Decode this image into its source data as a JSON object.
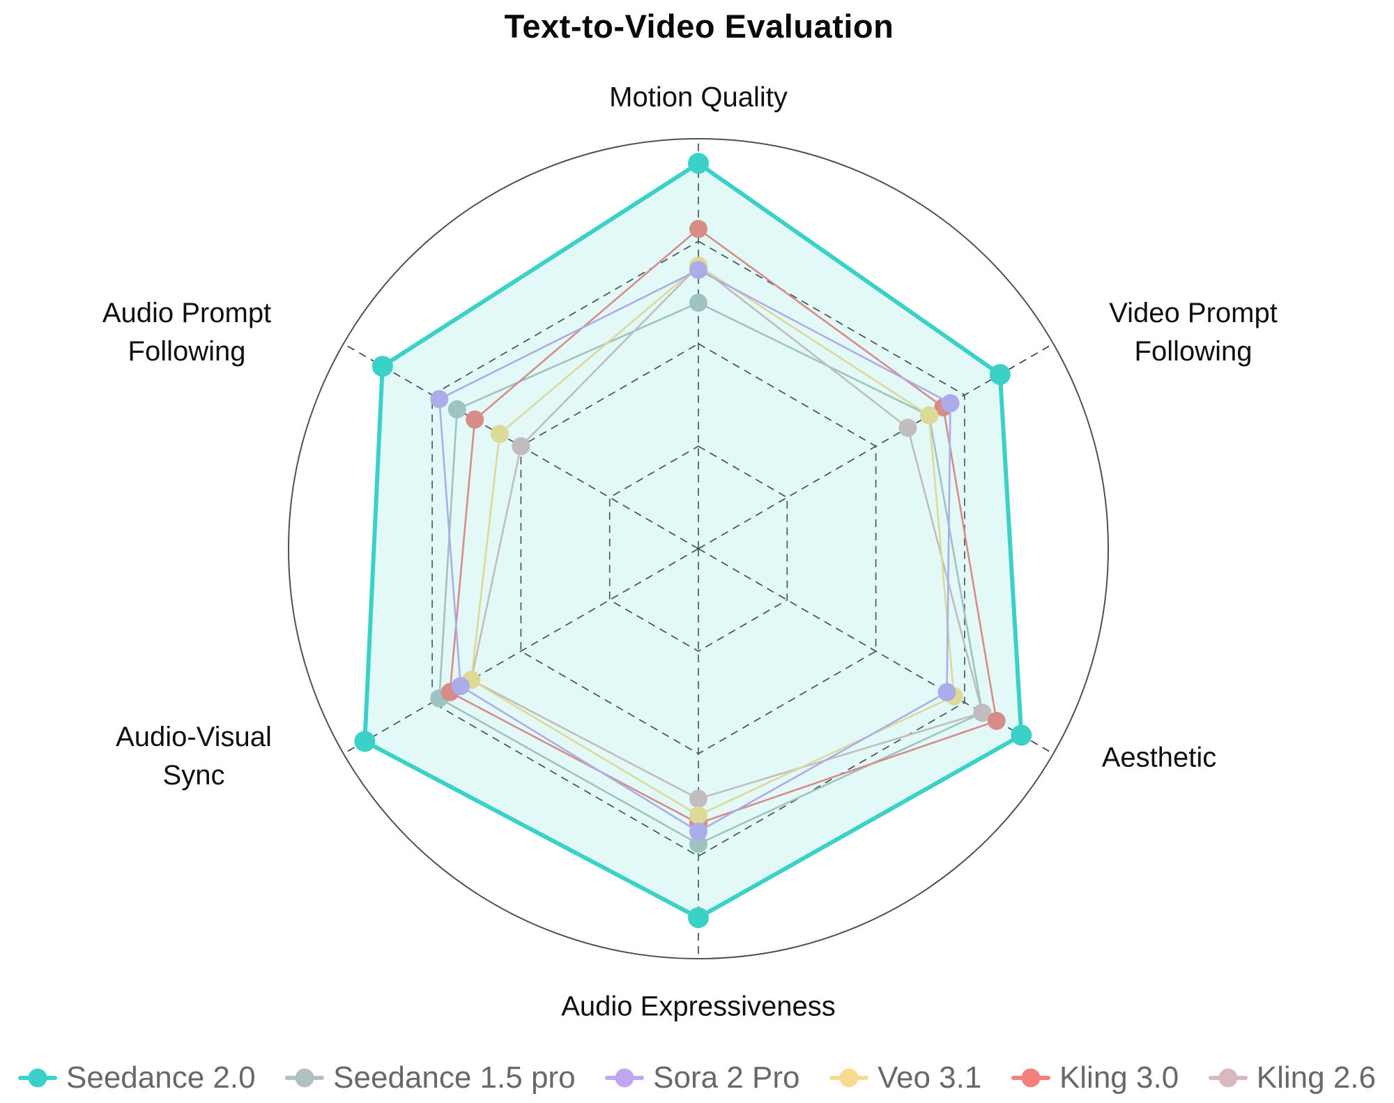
{
  "title": "Text-to-Video Evaluation",
  "chart_data": {
    "type": "radar",
    "title": "Text-to-Video Evaluation",
    "axes": [
      "Motion Quality",
      "Video Prompt Following",
      "Aesthetic",
      "Audio Expressiveness",
      "Audio-Visual Sync",
      "Audio Prompt Following"
    ],
    "axis_angles_deg": [
      90,
      30,
      -30,
      -90,
      -150,
      150
    ],
    "scale": {
      "min": 0,
      "max": 1,
      "grid_rings": [
        0.25,
        0.5,
        0.75
      ],
      "outer_boundary": "circle"
    },
    "legend_position": "bottom",
    "series": [
      {
        "name": "Seedance 2.0",
        "color": "#3ad1c9",
        "filled": true,
        "values": [
          0.94,
          0.85,
          0.91,
          0.9,
          0.94,
          0.89
        ]
      },
      {
        "name": "Seedance 1.5 pro",
        "color": "#afc2c1",
        "filled": false,
        "values": [
          0.6,
          0.65,
          0.8,
          0.72,
          0.73,
          0.68
        ]
      },
      {
        "name": "Sora 2 Pro",
        "color": "#c1a6f1",
        "filled": false,
        "values": [
          0.68,
          0.71,
          0.7,
          0.69,
          0.67,
          0.73
        ]
      },
      {
        "name": "Veo 3.1",
        "color": "#f7db8e",
        "filled": false,
        "values": [
          0.69,
          0.65,
          0.72,
          0.65,
          0.64,
          0.56
        ]
      },
      {
        "name": "Kling 3.0",
        "color": "#f2817d",
        "filled": false,
        "values": [
          0.78,
          0.69,
          0.84,
          0.67,
          0.7,
          0.63
        ]
      },
      {
        "name": "Kling 2.6",
        "color": "#d8b9bd",
        "filled": false,
        "values": [
          0.69,
          0.59,
          0.8,
          0.61,
          0.64,
          0.5
        ]
      }
    ]
  }
}
